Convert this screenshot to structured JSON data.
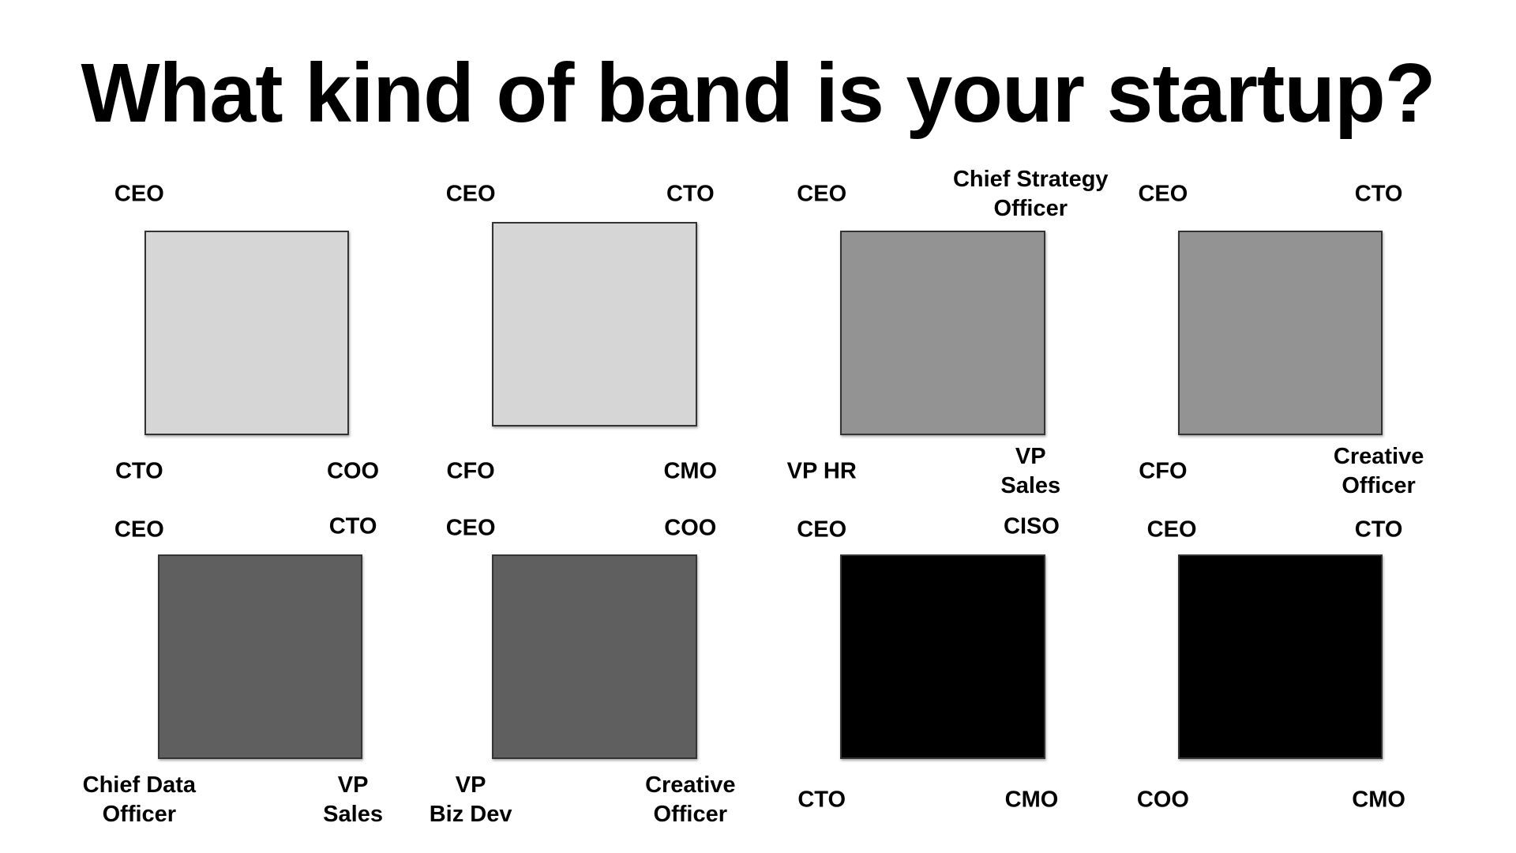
{
  "title": "What kind of band is your startup?",
  "panels": [
    {
      "fill": "#d6d6d6",
      "labels": [
        "CEO",
        "CTO",
        "COO"
      ]
    },
    {
      "fill": "#d6d6d6",
      "labels": [
        "CEO",
        "CTO",
        "CFO",
        "CMO"
      ]
    },
    {
      "fill": "#939393",
      "labels": [
        "CEO",
        "Chief Strategy\nOfficer",
        "VP HR",
        "VP\nSales"
      ]
    },
    {
      "fill": "#939393",
      "labels": [
        "CEO",
        "CTO",
        "CFO",
        "Creative\nOfficer"
      ]
    },
    {
      "fill": "#5f5f5f",
      "labels": [
        "CEO",
        "CTO",
        "Chief Data\nOfficer",
        "VP\nSales"
      ]
    },
    {
      "fill": "#5f5f5f",
      "labels": [
        "CEO",
        "COO",
        "VP\nBiz Dev",
        "Creative\nOfficer"
      ]
    },
    {
      "fill": "#000000",
      "labels": [
        "CEO",
        "CISO",
        "CTO",
        "CMO"
      ]
    },
    {
      "fill": "#000000",
      "labels": [
        "CEO",
        "CTO",
        "COO",
        "CMO"
      ]
    }
  ]
}
